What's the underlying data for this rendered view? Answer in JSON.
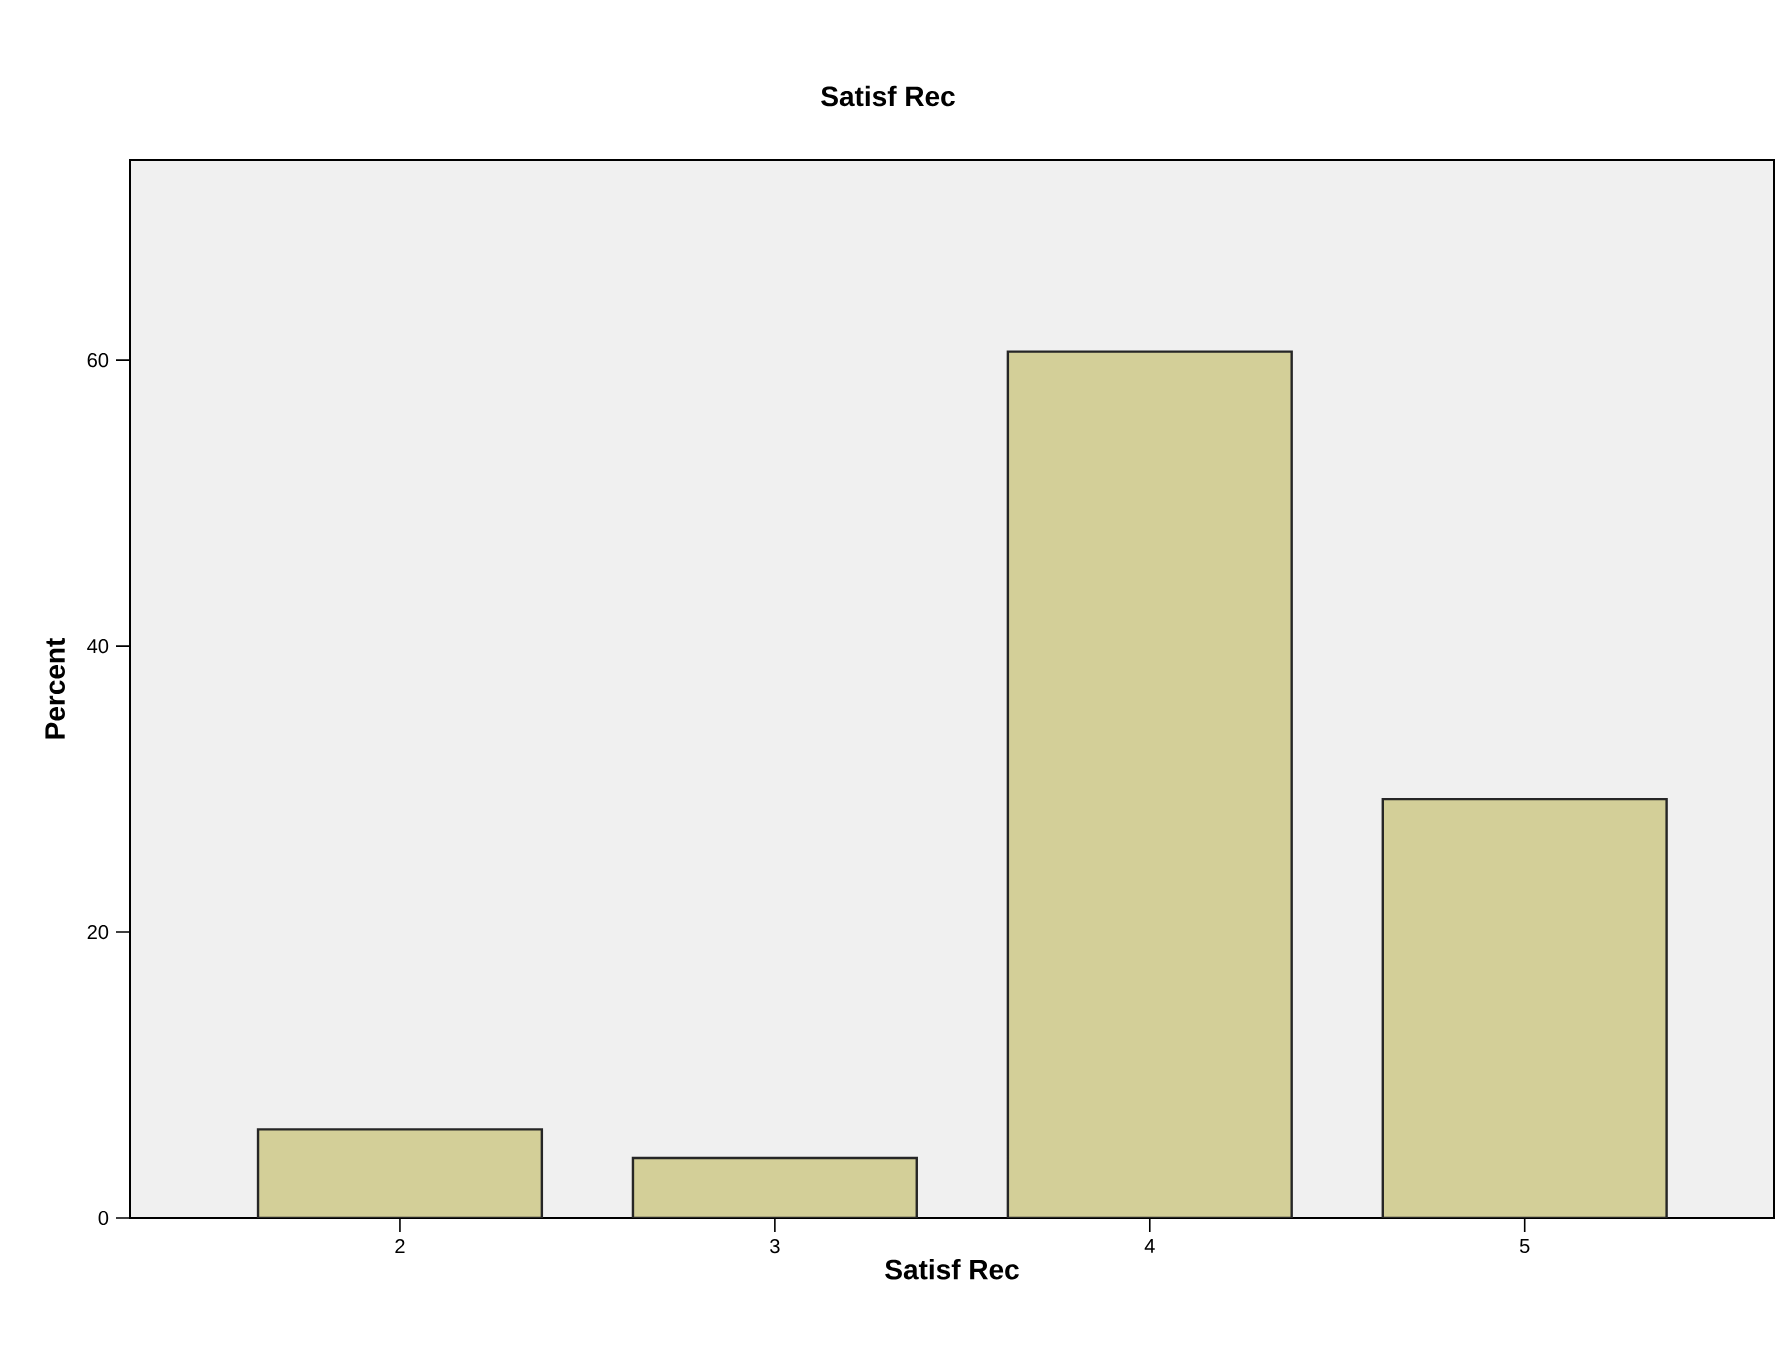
{
  "chart_data": {
    "type": "bar",
    "title": "Satisf Rec",
    "xlabel": "Satisf Rec",
    "ylabel": "Percent",
    "categories": [
      "2",
      "3",
      "4",
      "5"
    ],
    "values": [
      6.2,
      4.2,
      60.6,
      29.3
    ],
    "color": "#d3cf98",
    "ylim": [
      0,
      74
    ],
    "yticks": [
      0,
      20,
      40,
      60
    ]
  }
}
